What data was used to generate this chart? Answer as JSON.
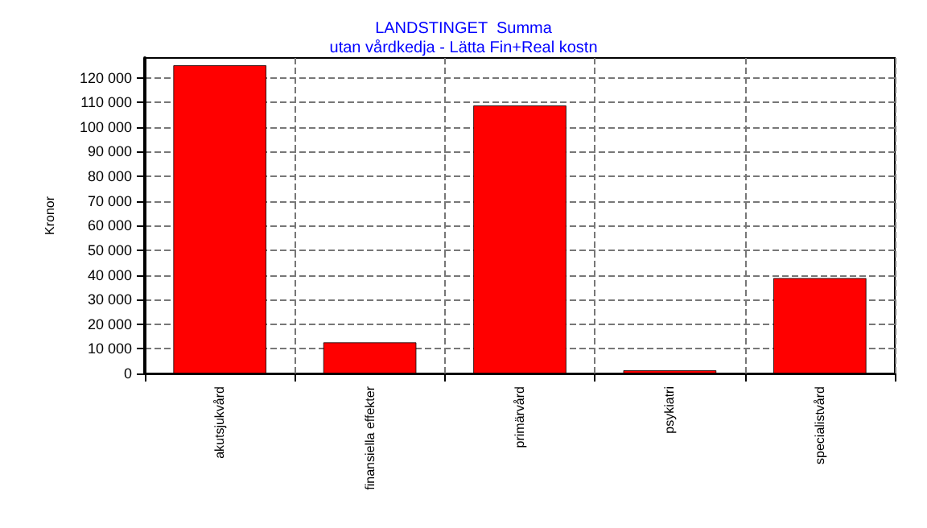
{
  "chart_data": {
    "type": "bar",
    "title": "LANDSTINGET  Summa",
    "subtitle": "utan vårdkedja - Lätta Fin+Real kostn",
    "ylabel": "Kronor",
    "categories": [
      "akutsjukvård",
      "finansiella effekter",
      "primärvård",
      "psykiatri",
      "specialistvård"
    ],
    "values": [
      125000,
      12600,
      108700,
      1300,
      38700
    ],
    "color": "#ff0000",
    "ylim": [
      0,
      128000
    ],
    "yticks": [
      {
        "value": 0,
        "label": "0"
      },
      {
        "value": 10000,
        "label": "10 000"
      },
      {
        "value": 20000,
        "label": "20 000"
      },
      {
        "value": 30000,
        "label": "30 000"
      },
      {
        "value": 40000,
        "label": "40 000"
      },
      {
        "value": 50000,
        "label": "50 000"
      },
      {
        "value": 60000,
        "label": "60 000"
      },
      {
        "value": 70000,
        "label": "70 000"
      },
      {
        "value": 80000,
        "label": "80 000"
      },
      {
        "value": 90000,
        "label": "90 000"
      },
      {
        "value": 100000,
        "label": "100 000"
      },
      {
        "value": 110000,
        "label": "110 000"
      },
      {
        "value": 120000,
        "label": "120 000"
      }
    ],
    "grid": true
  }
}
